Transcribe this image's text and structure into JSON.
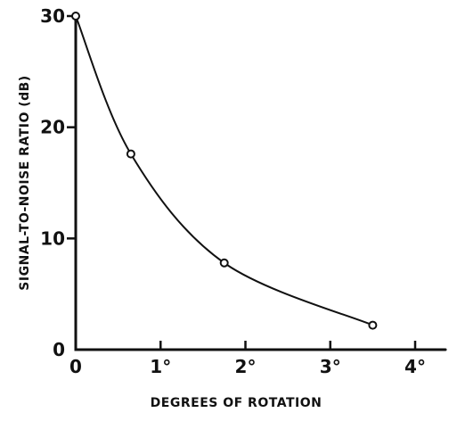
{
  "chart_data": {
    "type": "line",
    "xlabel": "DEGREES OF ROTATION",
    "ylabel": "SIGNAL-TO-NOISE RATIO (dB)",
    "xlim": [
      0,
      4
    ],
    "ylim": [
      0,
      30
    ],
    "x_ticks": [
      {
        "value": 0,
        "label": "0"
      },
      {
        "value": 1,
        "label": "1°"
      },
      {
        "value": 2,
        "label": "2°"
      },
      {
        "value": 3,
        "label": "3°"
      },
      {
        "value": 4,
        "label": "4°"
      }
    ],
    "y_ticks": [
      {
        "value": 0,
        "label": "0"
      },
      {
        "value": 10,
        "label": "10"
      },
      {
        "value": 20,
        "label": "20"
      },
      {
        "value": 30,
        "label": "30"
      }
    ],
    "grid": false,
    "series": [
      {
        "x": [
          0,
          0.65,
          1.75,
          3.5
        ],
        "y": [
          30,
          17.6,
          7.8,
          2.2
        ],
        "marker": "open-circle",
        "color": "#111111"
      }
    ]
  }
}
